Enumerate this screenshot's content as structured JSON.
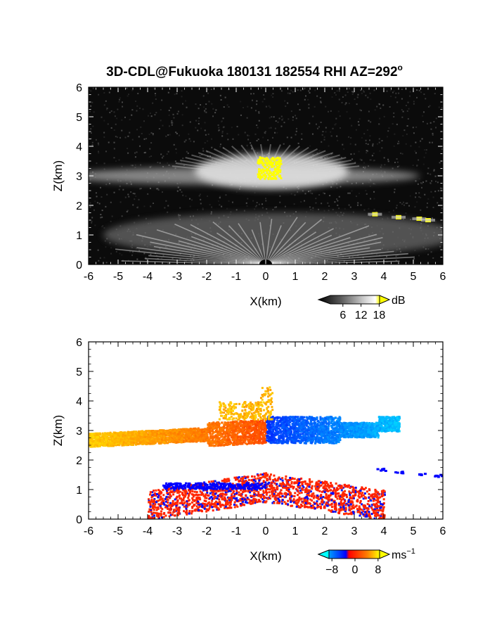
{
  "title_main": "3D-CDL@Fukuoka 180131 182554 RHI AZ=292",
  "title_sup": "o",
  "colors": {
    "background": "#ffffff",
    "frame": "#000000",
    "sn_dark": "#0b0b0b",
    "sn_light": "#ffffff",
    "sn_high": "#ffff00",
    "vel_neg_far": "#00ffff",
    "vel_neg_near": "#0000ff",
    "vel_zero": "#ff0000",
    "vel_pos_near": "#ff3000",
    "vel_pos_far": "#ffff00"
  },
  "chart_data": [
    {
      "type": "heatmap",
      "name": "signal-intensity-rhi",
      "xlabel": "X(km)",
      "ylabel": "Z(km)",
      "xlim": [
        -6,
        6
      ],
      "ylim": [
        0,
        6
      ],
      "xticks": [
        "-6",
        "-5",
        "-4",
        "-3",
        "-2",
        "-1",
        "0",
        "1",
        "2",
        "3",
        "4",
        "5",
        "6"
      ],
      "yticks": [
        "0",
        "1",
        "2",
        "3",
        "4",
        "5",
        "6"
      ],
      "grid": false,
      "colorbar": {
        "unit": "dB",
        "ticks": [
          "6",
          "12",
          "18"
        ],
        "range": [
          0,
          20
        ],
        "colormap": "black-gray-white-yellow",
        "position": "below-right"
      },
      "features": [
        {
          "kind": "layer",
          "x": [
            -6,
            4.5
          ],
          "z_center": 3.0,
          "z_halfwidth": 0.3,
          "intensity_db": 12
        },
        {
          "kind": "bright-core",
          "x": [
            -0.3,
            0.5
          ],
          "z": [
            2.9,
            3.7
          ],
          "intensity_db": 20
        },
        {
          "kind": "lower-layer",
          "x": [
            -6,
            6
          ],
          "z": [
            0.3,
            1.6
          ],
          "intensity_db": 8
        },
        {
          "kind": "near-range-fan",
          "x": [
            -2.5,
            2.5
          ],
          "z": [
            0,
            1.2
          ],
          "intensity_db": 14
        },
        {
          "kind": "hot-spots",
          "points": [
            [
              3.7,
              1.7
            ],
            [
              4.5,
              1.6
            ],
            [
              5.2,
              1.55
            ],
            [
              5.5,
              1.5
            ]
          ],
          "intensity_db": 20
        }
      ]
    },
    {
      "type": "heatmap",
      "name": "doppler-velocity-rhi",
      "xlabel": "X(km)",
      "ylabel": "Z(km)",
      "xlim": [
        -6,
        6
      ],
      "ylim": [
        0,
        6
      ],
      "xticks": [
        "-6",
        "-5",
        "-4",
        "-3",
        "-2",
        "-1",
        "0",
        "1",
        "2",
        "3",
        "4",
        "5",
        "6"
      ],
      "yticks": [
        "0",
        "1",
        "2",
        "3",
        "4",
        "5",
        "6"
      ],
      "grid": false,
      "colorbar": {
        "unit": "ms",
        "unit_sup": "−1",
        "ticks": [
          "−8",
          "0",
          "8"
        ],
        "range": [
          -10,
          10
        ],
        "colormap": "cyan-blue-red-yellow",
        "position": "below-right"
      },
      "features": [
        {
          "kind": "layer-receding",
          "x": [
            -6,
            0
          ],
          "z": [
            2.7,
            3.3
          ],
          "velocity_ms": [
            8,
            3
          ]
        },
        {
          "kind": "layer-approaching",
          "x": [
            0,
            4.5
          ],
          "z": [
            2.7,
            3.4
          ],
          "velocity_ms": [
            -3,
            -8
          ]
        },
        {
          "kind": "upper-tuft",
          "x": [
            -1.5,
            0.2
          ],
          "z": [
            3.3,
            4.5
          ],
          "velocity_ms": 7
        },
        {
          "kind": "lower-mixed",
          "x": [
            -4,
            4
          ],
          "z": [
            0,
            1.8
          ],
          "velocity_ms": [
            -2,
            2
          ]
        },
        {
          "kind": "outlier-points",
          "points": [
            [
              3.9,
              1.7
            ],
            [
              4.5,
              1.62
            ],
            [
              5.3,
              1.55
            ],
            [
              5.8,
              1.5
            ]
          ],
          "velocity_ms": -1
        }
      ]
    }
  ]
}
